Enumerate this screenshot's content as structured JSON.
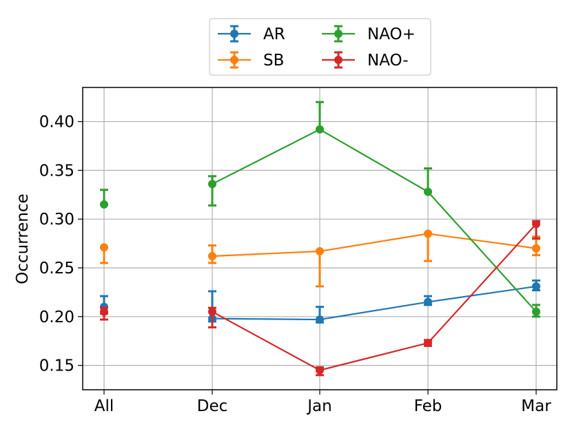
{
  "chart_data": {
    "type": "line",
    "title": "",
    "xlabel": "",
    "ylabel": "Occurrence",
    "categories": [
      "All",
      "Dec",
      "Jan",
      "Feb",
      "Mar"
    ],
    "ylim": [
      0.125,
      0.435
    ],
    "yticks": [
      0.15,
      0.2,
      0.25,
      0.3,
      0.35,
      0.4
    ],
    "ytick_labels": [
      "0.15",
      "0.20",
      "0.25",
      "0.30",
      "0.35",
      "0.40"
    ],
    "grid": true,
    "legend_position": "top-center",
    "note": "The 'All' point of each series is plotted on its own (not joined by the line).",
    "series": [
      {
        "name": "AR",
        "color": "#1f77b4",
        "values": [
          0.21,
          0.198,
          0.197,
          0.215,
          0.231
        ],
        "err_low": [
          0.203,
          0.195,
          0.194,
          0.212,
          0.227
        ],
        "err_high": [
          0.221,
          0.226,
          0.21,
          0.221,
          0.237
        ]
      },
      {
        "name": "SB",
        "color": "#ff7f0e",
        "values": [
          0.271,
          0.262,
          0.267,
          0.285,
          0.27
        ],
        "err_low": [
          0.255,
          0.255,
          0.231,
          0.257,
          0.263
        ],
        "err_high": [
          0.271,
          0.273,
          0.267,
          0.285,
          0.282
        ]
      },
      {
        "name": "NAO+",
        "color": "#2ca02c",
        "values": [
          0.315,
          0.336,
          0.392,
          0.328,
          0.205
        ],
        "err_low": [
          0.315,
          0.314,
          0.392,
          0.328,
          0.2
        ],
        "err_high": [
          0.33,
          0.344,
          0.42,
          0.352,
          0.212
        ]
      },
      {
        "name": "NAO-",
        "color": "#d62728",
        "values": [
          0.205,
          0.205,
          0.145,
          0.173,
          0.295
        ],
        "err_low": [
          0.197,
          0.189,
          0.14,
          0.17,
          0.28
        ],
        "err_high": [
          0.209,
          0.209,
          0.148,
          0.176,
          0.298
        ]
      }
    ]
  }
}
